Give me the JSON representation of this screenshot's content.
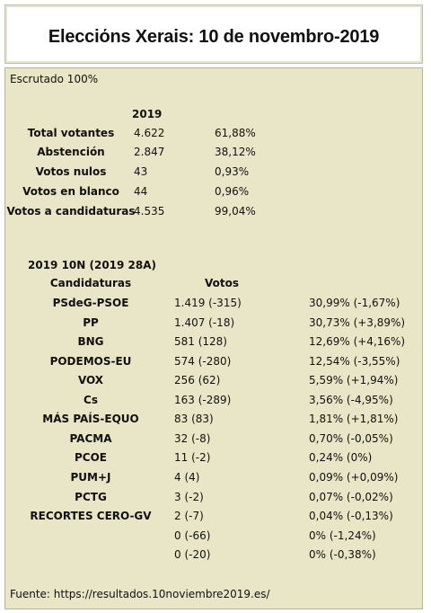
{
  "header": {
    "title": "Elecciόns Xerais: 10 de novembro-2019"
  },
  "status": "Escrutado 100%",
  "summary": {
    "year": "2019",
    "rows": [
      {
        "label": "Total votantes",
        "value": "4.622",
        "pct": "61,88%"
      },
      {
        "label": "Abstención",
        "value": "2.847",
        "pct": "38,12%"
      },
      {
        "label": "Votos nulos",
        "value": "43",
        "pct": "0,93%"
      },
      {
        "label": "Votos en blanco",
        "value": "44",
        "pct": "0,96%"
      },
      {
        "label": "Votos a candidaturas",
        "value": "4.535",
        "pct": "99,04%"
      }
    ]
  },
  "results": {
    "title": "2019 10N (2019 28A)",
    "headers": [
      "Candidaturas",
      "Votos"
    ],
    "rows": [
      {
        "name": "PSdeG-PSOE",
        "votes": "1.419 (-315)",
        "pct": "30,99% (-1,67%)"
      },
      {
        "name": "PP",
        "votes": "1.407 (-18)",
        "pct": "30,73% (+3,89%)"
      },
      {
        "name": "BNG",
        "votes": "581 (128)",
        "pct": "12,69% (+4,16%)"
      },
      {
        "name": "PODEMOS-EU",
        "votes": "574 (-280)",
        "pct": "12,54% (-3,55%)"
      },
      {
        "name": "VOX",
        "votes": "256 (62)",
        "pct": "5,59% (+1,94%)"
      },
      {
        "name": "Cs",
        "votes": "163 (-289)",
        "pct": "3,56% (-4,95%)"
      },
      {
        "name": "MÁS PAÍS-EQUO",
        "votes": "83 (83)",
        "pct": "1,81% (+1,81%)"
      },
      {
        "name": "PACMA",
        "votes": "32 (-8)",
        "pct": "0,70% (-0,05%)"
      },
      {
        "name": "PCOE",
        "votes": "11 (-2)",
        "pct": "0,24% (0%)"
      },
      {
        "name": "PUM+J",
        "votes": "4 (4)",
        "pct": "0,09% (+0,09%)"
      },
      {
        "name": "PCTG",
        "votes": "3 (-2)",
        "pct": "0,07% (-0,02%)"
      },
      {
        "name": "RECORTES CERO-GV",
        "votes": "2 (-7)",
        "pct": "0,04% (-0,13%)"
      },
      {
        "votes": "0 (-66)",
        "pct": "0% (-1,24%)"
      },
      {
        "votes": "0 (-20)",
        "pct": "0% (-0,38%)"
      }
    ]
  },
  "source": "Fuente: https://resultados.10noviembre2019.es/"
}
